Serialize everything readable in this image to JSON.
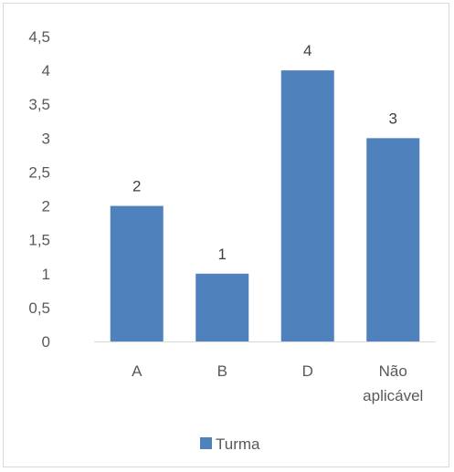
{
  "chart_data": {
    "type": "bar",
    "categories": [
      [
        "A"
      ],
      [
        "B"
      ],
      [
        "D"
      ],
      [
        "Não",
        "aplicável"
      ]
    ],
    "series": [
      {
        "name": "Turma",
        "values": [
          2,
          1,
          4,
          3
        ],
        "color": "#4f81bd"
      }
    ],
    "ylim": [
      0,
      4.5
    ],
    "ytick_step": 0.5,
    "ytick_labels": [
      "0",
      "0,5",
      "1",
      "1,5",
      "2",
      "2,5",
      "3",
      "3,5",
      "4",
      "4,5"
    ],
    "grid": false,
    "legend_position": "bottom",
    "title": "",
    "xlabel": "",
    "ylabel": ""
  }
}
